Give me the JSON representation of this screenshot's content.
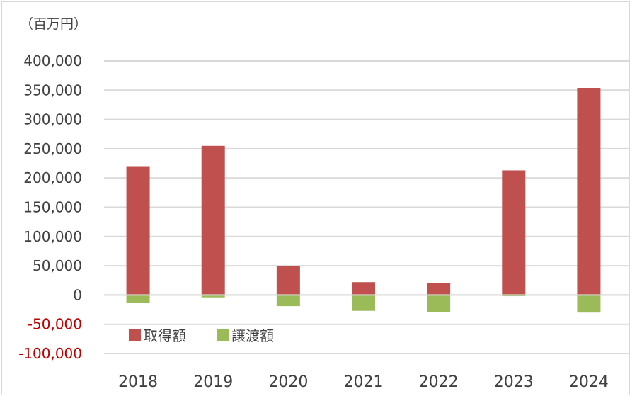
{
  "chart_data": {
    "type": "bar",
    "unit_label": "（百万円）",
    "categories": [
      "2018",
      "2019",
      "2020",
      "2021",
      "2022",
      "2023",
      "2024"
    ],
    "series": [
      {
        "name": "取得額",
        "color": "#c0504d",
        "values": [
          219000,
          255000,
          50000,
          22000,
          20000,
          213000,
          354000
        ]
      },
      {
        "name": "譲渡額",
        "color": "#9bbb59",
        "values": [
          -14000,
          -4000,
          -19000,
          -27000,
          -29000,
          -2000,
          -30000
        ]
      }
    ],
    "ylim": [
      -100000,
      400000
    ],
    "yticks": [
      {
        "value": 400000,
        "label": "400,000"
      },
      {
        "value": 350000,
        "label": "350,000"
      },
      {
        "value": 300000,
        "label": "300,000"
      },
      {
        "value": 250000,
        "label": "250,000"
      },
      {
        "value": 200000,
        "label": "200,000"
      },
      {
        "value": 150000,
        "label": "150,000"
      },
      {
        "value": 100000,
        "label": "100,000"
      },
      {
        "value": 50000,
        "label": "50,000"
      },
      {
        "value": 0,
        "label": "0"
      },
      {
        "value": -50000,
        "label": "-50,000"
      },
      {
        "value": -100000,
        "label": "-100,000"
      }
    ],
    "positive_tick_color": "#404040",
    "negative_tick_color": "#c00000",
    "grid": true,
    "legend_position": "bottom-left inside plot"
  }
}
